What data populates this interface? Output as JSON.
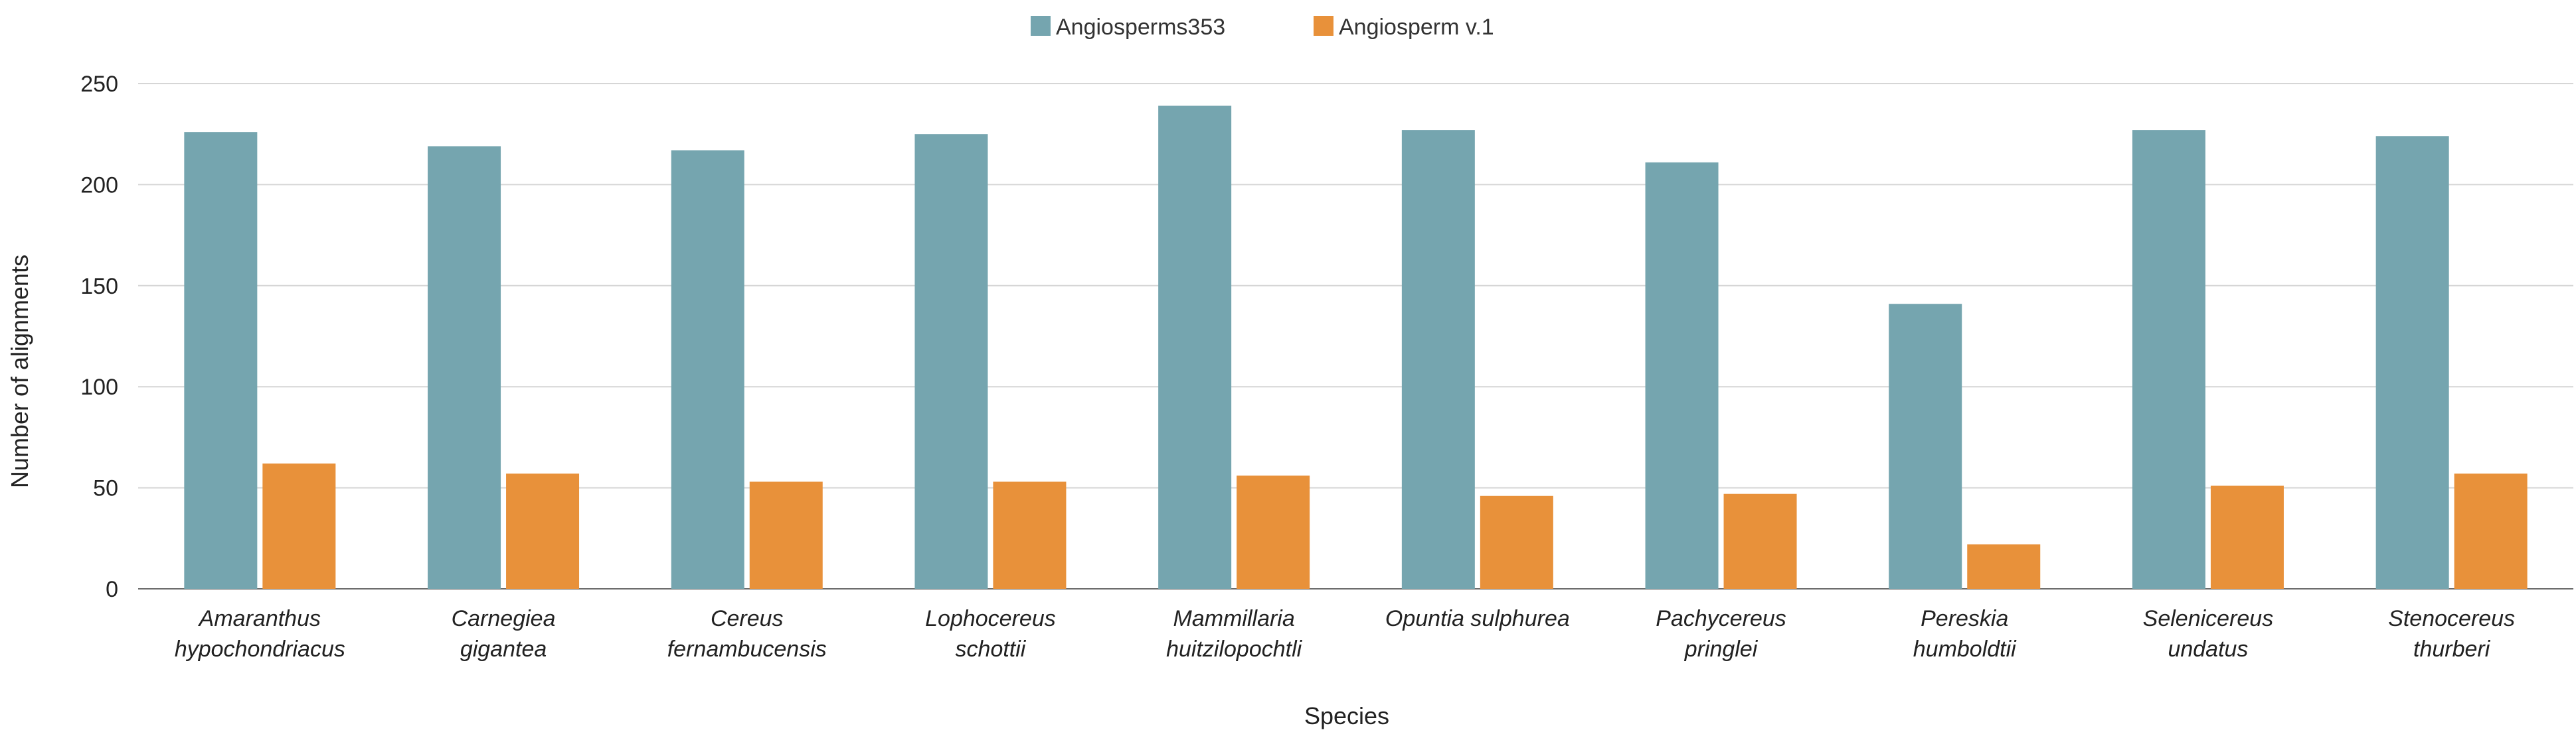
{
  "chart_data": {
    "type": "bar",
    "title": "",
    "xlabel": "Species",
    "ylabel": "Number of alignments",
    "ylim": [
      0,
      250
    ],
    "yticks": [
      0,
      50,
      100,
      150,
      200,
      250
    ],
    "grid": true,
    "legend_position": "top-center",
    "categories": [
      [
        "Amaranthus",
        "hypochondriacus"
      ],
      [
        "Carnegiea",
        "gigantea"
      ],
      [
        "Cereus",
        "fernambucensis"
      ],
      [
        "Lophocereus",
        "schottii"
      ],
      [
        "Mammillaria",
        "huitzilopochtli"
      ],
      [
        "Opuntia sulphurea"
      ],
      [
        "Pachycereus",
        "pringlei"
      ],
      [
        "Pereskia",
        "humboldtii"
      ],
      [
        "Selenicereus",
        "undatus"
      ],
      [
        "Stenocereus",
        "thurberi"
      ]
    ],
    "series": [
      {
        "name": "Angiosperms353",
        "color": "#75A5AF",
        "values": [
          226,
          219,
          217,
          225,
          239,
          227,
          211,
          141,
          227,
          224
        ]
      },
      {
        "name": "Angiosperm v.1",
        "color": "#E8913A",
        "values": [
          62,
          57,
          53,
          53,
          56,
          46,
          47,
          22,
          51,
          57
        ]
      }
    ]
  }
}
